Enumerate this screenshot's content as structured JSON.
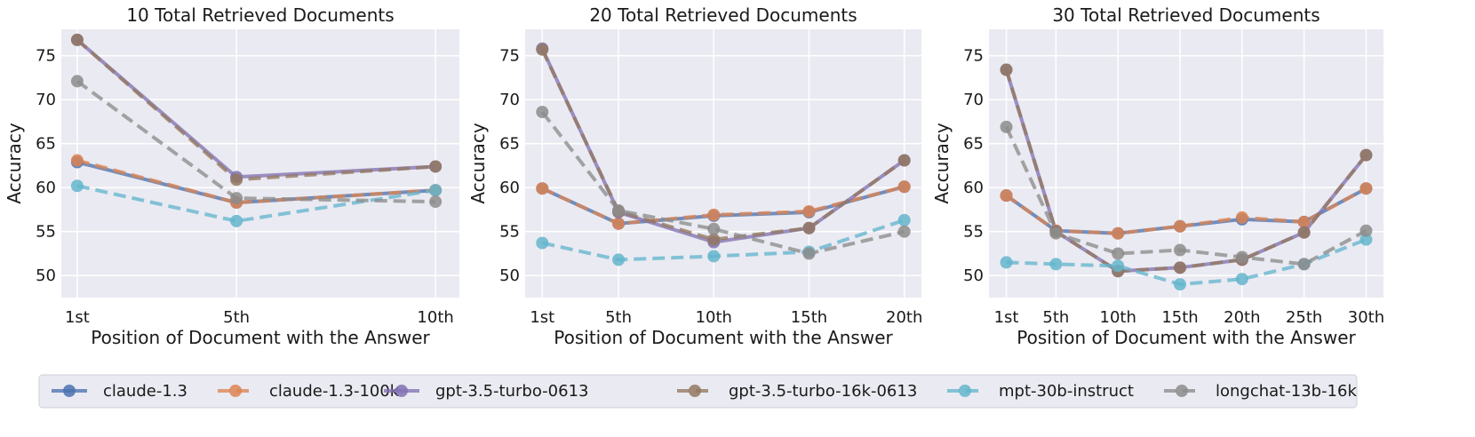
{
  "chart_data": [
    {
      "type": "line",
      "title": "10 Total Retrieved Documents",
      "xlabel": "Position of Document with the Answer",
      "ylabel": "Accuracy",
      "categories": [
        "1st",
        "5th",
        "10th"
      ],
      "x": [
        1,
        5,
        10
      ],
      "xlim": [
        0.6,
        10.6
      ],
      "ylim": [
        47.5,
        78
      ],
      "yticks": [
        50,
        55,
        60,
        65,
        70,
        75
      ],
      "series": [
        {
          "name": "claude-1.3",
          "values": [
            62.9,
            58.3,
            59.7
          ]
        },
        {
          "name": "claude-1.3-100k",
          "values": [
            63.1,
            58.3,
            59.7
          ]
        },
        {
          "name": "gpt-3.5-turbo-0613",
          "values": [
            76.8,
            61.2,
            62.4
          ]
        },
        {
          "name": "gpt-3.5-turbo-16k-0613",
          "values": [
            76.8,
            60.9,
            62.4
          ]
        },
        {
          "name": "mpt-30b-instruct",
          "values": [
            60.2,
            56.2,
            59.7
          ]
        },
        {
          "name": "longchat-13b-16k",
          "values": [
            72.1,
            58.8,
            58.4
          ]
        }
      ]
    },
    {
      "type": "line",
      "title": "20 Total Retrieved Documents",
      "xlabel": "Position of Document with the Answer",
      "ylabel": "Accuracy",
      "categories": [
        "1st",
        "5th",
        "10th",
        "15th",
        "20th"
      ],
      "x": [
        1,
        5,
        10,
        15,
        20
      ],
      "xlim": [
        0.1,
        20.9
      ],
      "ylim": [
        47.5,
        78
      ],
      "yticks": [
        50,
        55,
        60,
        65,
        70,
        75
      ],
      "series": [
        {
          "name": "claude-1.3",
          "values": [
            59.9,
            55.9,
            56.8,
            57.2,
            60.1
          ]
        },
        {
          "name": "claude-1.3-100k",
          "values": [
            59.9,
            55.9,
            56.9,
            57.3,
            60.1
          ]
        },
        {
          "name": "gpt-3.5-turbo-0613",
          "values": [
            75.8,
            57.2,
            53.8,
            55.4,
            63.1
          ]
        },
        {
          "name": "gpt-3.5-turbo-16k-0613",
          "values": [
            75.7,
            57.3,
            54.1,
            55.4,
            63.1
          ]
        },
        {
          "name": "mpt-30b-instruct",
          "values": [
            53.7,
            51.8,
            52.2,
            52.7,
            56.3
          ]
        },
        {
          "name": "longchat-13b-16k",
          "values": [
            68.6,
            57.4,
            55.3,
            52.5,
            55.0
          ]
        }
      ]
    },
    {
      "type": "line",
      "title": "30 Total Retrieved Documents",
      "xlabel": "Position of Document with the Answer",
      "ylabel": "Accuracy",
      "categories": [
        "1st",
        "5th",
        "10th",
        "15th",
        "20th",
        "25th",
        "30th"
      ],
      "x": [
        1,
        5,
        10,
        15,
        20,
        25,
        30
      ],
      "xlim": [
        -0.4,
        31.4
      ],
      "ylim": [
        47.5,
        78
      ],
      "yticks": [
        50,
        55,
        60,
        65,
        70,
        75
      ],
      "series": [
        {
          "name": "claude-1.3",
          "values": [
            59.1,
            55.1,
            54.8,
            55.6,
            56.4,
            56.1,
            59.9
          ]
        },
        {
          "name": "claude-1.3-100k",
          "values": [
            59.1,
            55.1,
            54.8,
            55.6,
            56.6,
            56.1,
            59.9
          ]
        },
        {
          "name": "gpt-3.5-turbo-0613",
          "values": [
            73.4,
            55.0,
            50.5,
            50.9,
            51.8,
            54.9,
            63.7
          ]
        },
        {
          "name": "gpt-3.5-turbo-16k-0613",
          "values": [
            73.4,
            55.0,
            50.5,
            50.9,
            51.8,
            54.9,
            63.7
          ]
        },
        {
          "name": "mpt-30b-instruct",
          "values": [
            51.5,
            51.3,
            51.1,
            49.0,
            49.6,
            51.3,
            54.1
          ]
        },
        {
          "name": "longchat-13b-16k",
          "values": [
            66.9,
            54.8,
            52.5,
            52.9,
            52.1,
            51.3,
            55.1
          ]
        }
      ]
    }
  ],
  "legend": {
    "placement": "bottom-center",
    "items": [
      {
        "name": "claude-1.3",
        "color": "#4c72b0",
        "dashed": false
      },
      {
        "name": "claude-1.3-100k",
        "color": "#dd8452",
        "dashed": true
      },
      {
        "name": "gpt-3.5-turbo-0613",
        "color": "#8172b3",
        "dashed": false
      },
      {
        "name": "gpt-3.5-turbo-16k-0613",
        "color": "#937860",
        "dashed": true
      },
      {
        "name": "mpt-30b-instruct",
        "color": "#64b5cd",
        "dashed": true
      },
      {
        "name": "longchat-13b-16k",
        "color": "#8c8c8c",
        "dashed": true
      }
    ]
  }
}
